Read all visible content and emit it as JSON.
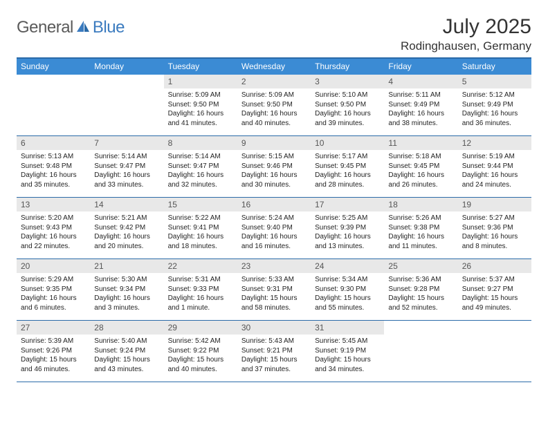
{
  "logo": {
    "text_general": "General",
    "text_blue": "Blue",
    "icon_color": "#3b7bbf"
  },
  "title": "July 2025",
  "location": "Rodinghausen, Germany",
  "colors": {
    "header_bg": "#3b8bd4",
    "rule": "#2a6aa8",
    "daynum_bg": "#e8e8e8",
    "text": "#222222"
  },
  "day_names": [
    "Sunday",
    "Monday",
    "Tuesday",
    "Wednesday",
    "Thursday",
    "Friday",
    "Saturday"
  ],
  "weeks": [
    [
      null,
      null,
      {
        "n": "1",
        "sr": "Sunrise: 5:09 AM",
        "ss": "Sunset: 9:50 PM",
        "dl": "Daylight: 16 hours and 41 minutes."
      },
      {
        "n": "2",
        "sr": "Sunrise: 5:09 AM",
        "ss": "Sunset: 9:50 PM",
        "dl": "Daylight: 16 hours and 40 minutes."
      },
      {
        "n": "3",
        "sr": "Sunrise: 5:10 AM",
        "ss": "Sunset: 9:50 PM",
        "dl": "Daylight: 16 hours and 39 minutes."
      },
      {
        "n": "4",
        "sr": "Sunrise: 5:11 AM",
        "ss": "Sunset: 9:49 PM",
        "dl": "Daylight: 16 hours and 38 minutes."
      },
      {
        "n": "5",
        "sr": "Sunrise: 5:12 AM",
        "ss": "Sunset: 9:49 PM",
        "dl": "Daylight: 16 hours and 36 minutes."
      }
    ],
    [
      {
        "n": "6",
        "sr": "Sunrise: 5:13 AM",
        "ss": "Sunset: 9:48 PM",
        "dl": "Daylight: 16 hours and 35 minutes."
      },
      {
        "n": "7",
        "sr": "Sunrise: 5:14 AM",
        "ss": "Sunset: 9:47 PM",
        "dl": "Daylight: 16 hours and 33 minutes."
      },
      {
        "n": "8",
        "sr": "Sunrise: 5:14 AM",
        "ss": "Sunset: 9:47 PM",
        "dl": "Daylight: 16 hours and 32 minutes."
      },
      {
        "n": "9",
        "sr": "Sunrise: 5:15 AM",
        "ss": "Sunset: 9:46 PM",
        "dl": "Daylight: 16 hours and 30 minutes."
      },
      {
        "n": "10",
        "sr": "Sunrise: 5:17 AM",
        "ss": "Sunset: 9:45 PM",
        "dl": "Daylight: 16 hours and 28 minutes."
      },
      {
        "n": "11",
        "sr": "Sunrise: 5:18 AM",
        "ss": "Sunset: 9:45 PM",
        "dl": "Daylight: 16 hours and 26 minutes."
      },
      {
        "n": "12",
        "sr": "Sunrise: 5:19 AM",
        "ss": "Sunset: 9:44 PM",
        "dl": "Daylight: 16 hours and 24 minutes."
      }
    ],
    [
      {
        "n": "13",
        "sr": "Sunrise: 5:20 AM",
        "ss": "Sunset: 9:43 PM",
        "dl": "Daylight: 16 hours and 22 minutes."
      },
      {
        "n": "14",
        "sr": "Sunrise: 5:21 AM",
        "ss": "Sunset: 9:42 PM",
        "dl": "Daylight: 16 hours and 20 minutes."
      },
      {
        "n": "15",
        "sr": "Sunrise: 5:22 AM",
        "ss": "Sunset: 9:41 PM",
        "dl": "Daylight: 16 hours and 18 minutes."
      },
      {
        "n": "16",
        "sr": "Sunrise: 5:24 AM",
        "ss": "Sunset: 9:40 PM",
        "dl": "Daylight: 16 hours and 16 minutes."
      },
      {
        "n": "17",
        "sr": "Sunrise: 5:25 AM",
        "ss": "Sunset: 9:39 PM",
        "dl": "Daylight: 16 hours and 13 minutes."
      },
      {
        "n": "18",
        "sr": "Sunrise: 5:26 AM",
        "ss": "Sunset: 9:38 PM",
        "dl": "Daylight: 16 hours and 11 minutes."
      },
      {
        "n": "19",
        "sr": "Sunrise: 5:27 AM",
        "ss": "Sunset: 9:36 PM",
        "dl": "Daylight: 16 hours and 8 minutes."
      }
    ],
    [
      {
        "n": "20",
        "sr": "Sunrise: 5:29 AM",
        "ss": "Sunset: 9:35 PM",
        "dl": "Daylight: 16 hours and 6 minutes."
      },
      {
        "n": "21",
        "sr": "Sunrise: 5:30 AM",
        "ss": "Sunset: 9:34 PM",
        "dl": "Daylight: 16 hours and 3 minutes."
      },
      {
        "n": "22",
        "sr": "Sunrise: 5:31 AM",
        "ss": "Sunset: 9:33 PM",
        "dl": "Daylight: 16 hours and 1 minute."
      },
      {
        "n": "23",
        "sr": "Sunrise: 5:33 AM",
        "ss": "Sunset: 9:31 PM",
        "dl": "Daylight: 15 hours and 58 minutes."
      },
      {
        "n": "24",
        "sr": "Sunrise: 5:34 AM",
        "ss": "Sunset: 9:30 PM",
        "dl": "Daylight: 15 hours and 55 minutes."
      },
      {
        "n": "25",
        "sr": "Sunrise: 5:36 AM",
        "ss": "Sunset: 9:28 PM",
        "dl": "Daylight: 15 hours and 52 minutes."
      },
      {
        "n": "26",
        "sr": "Sunrise: 5:37 AM",
        "ss": "Sunset: 9:27 PM",
        "dl": "Daylight: 15 hours and 49 minutes."
      }
    ],
    [
      {
        "n": "27",
        "sr": "Sunrise: 5:39 AM",
        "ss": "Sunset: 9:26 PM",
        "dl": "Daylight: 15 hours and 46 minutes."
      },
      {
        "n": "28",
        "sr": "Sunrise: 5:40 AM",
        "ss": "Sunset: 9:24 PM",
        "dl": "Daylight: 15 hours and 43 minutes."
      },
      {
        "n": "29",
        "sr": "Sunrise: 5:42 AM",
        "ss": "Sunset: 9:22 PM",
        "dl": "Daylight: 15 hours and 40 minutes."
      },
      {
        "n": "30",
        "sr": "Sunrise: 5:43 AM",
        "ss": "Sunset: 9:21 PM",
        "dl": "Daylight: 15 hours and 37 minutes."
      },
      {
        "n": "31",
        "sr": "Sunrise: 5:45 AM",
        "ss": "Sunset: 9:19 PM",
        "dl": "Daylight: 15 hours and 34 minutes."
      },
      null,
      null
    ]
  ]
}
